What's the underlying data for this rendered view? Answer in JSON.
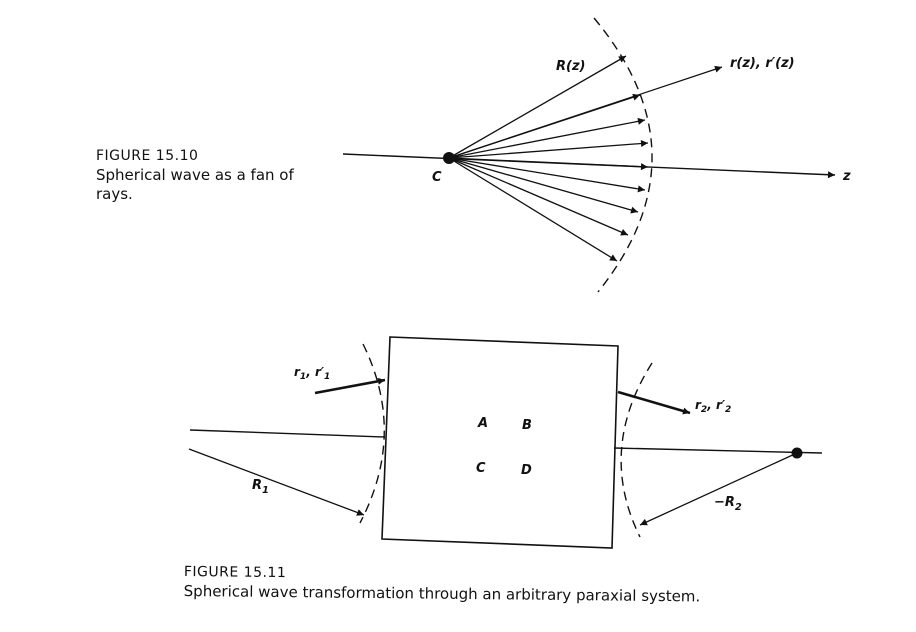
{
  "figure1": {
    "number": "FIGURE 15.10",
    "caption": "Spherical wave as a fan of rays.",
    "labels": {
      "center": "C",
      "radius": "R(z)",
      "ray": "r(z), r′(z)",
      "axis": "z"
    }
  },
  "figure2": {
    "number": "FIGURE 15.11",
    "caption": "Spherical wave transformation through an arbitrary paraxial system.",
    "labels": {
      "input_ray_r": "r",
      "input_ray_sub": "1",
      "input_ray_sep": ", ",
      "input_ray_rp": "r′",
      "input_ray_rp_sub": "1",
      "output_ray_r": "r",
      "output_ray_sub": "2",
      "output_ray_sep": ", ",
      "output_ray_rp": "r′",
      "output_ray_rp_sub": "2",
      "radius_in": "R",
      "radius_in_sub": "1",
      "radius_out": "−R",
      "radius_out_sub": "2",
      "matrix_a": "A",
      "matrix_b": "B",
      "matrix_c": "C",
      "matrix_d": "D"
    }
  }
}
